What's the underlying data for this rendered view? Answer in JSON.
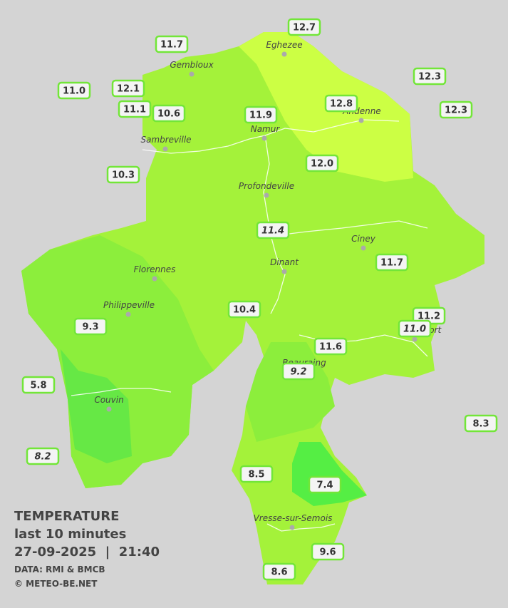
{
  "stations": [
    {
      "value": "12.7",
      "italic": false
    },
    {
      "value": "11.7",
      "italic": false
    },
    {
      "value": "12.3",
      "italic": false
    },
    {
      "value": "11.0",
      "italic": false
    },
    {
      "value": "12.1",
      "italic": false
    },
    {
      "value": "12.8",
      "italic": false
    },
    {
      "value": "12.3",
      "italic": false
    },
    {
      "value": "11.1",
      "italic": false
    },
    {
      "value": "10.6",
      "italic": false
    },
    {
      "value": "11.9",
      "italic": false
    },
    {
      "value": "12.0",
      "italic": false
    },
    {
      "value": "10.3",
      "italic": false
    },
    {
      "value": "11.4",
      "italic": true
    },
    {
      "value": "11.7",
      "italic": false
    },
    {
      "value": "10.4",
      "italic": false
    },
    {
      "value": "11.2",
      "italic": false
    },
    {
      "value": "11.0",
      "italic": true
    },
    {
      "value": "9.3",
      "italic": false
    },
    {
      "value": "11.6",
      "italic": false
    },
    {
      "value": "9.2",
      "italic": true
    },
    {
      "value": "5.8",
      "italic": false
    },
    {
      "value": "8.3",
      "italic": false
    },
    {
      "value": "8.2",
      "italic": true
    },
    {
      "value": "8.5",
      "italic": false
    },
    {
      "value": "7.4",
      "italic": false
    },
    {
      "value": "9.6",
      "italic": false
    },
    {
      "value": "8.6",
      "italic": false
    }
  ],
  "cities": [
    "Eghezee",
    "Gembloux",
    "Andenne",
    "Namur",
    "Sambreville",
    "Profondeville",
    "Ciney",
    "Dinant",
    "Florennes",
    "Philippeville",
    "Rochefort",
    "Beauraing",
    "Couvin",
    "Vresse-sur-Semois"
  ],
  "legend": {
    "title": "TEMPERATURE",
    "subtitle": "last 10 minutes",
    "datetime": "27-09-2025  |  21:40",
    "source": "DATA: RMI & BMCB",
    "copyright": "© METEO-BE.NET"
  }
}
